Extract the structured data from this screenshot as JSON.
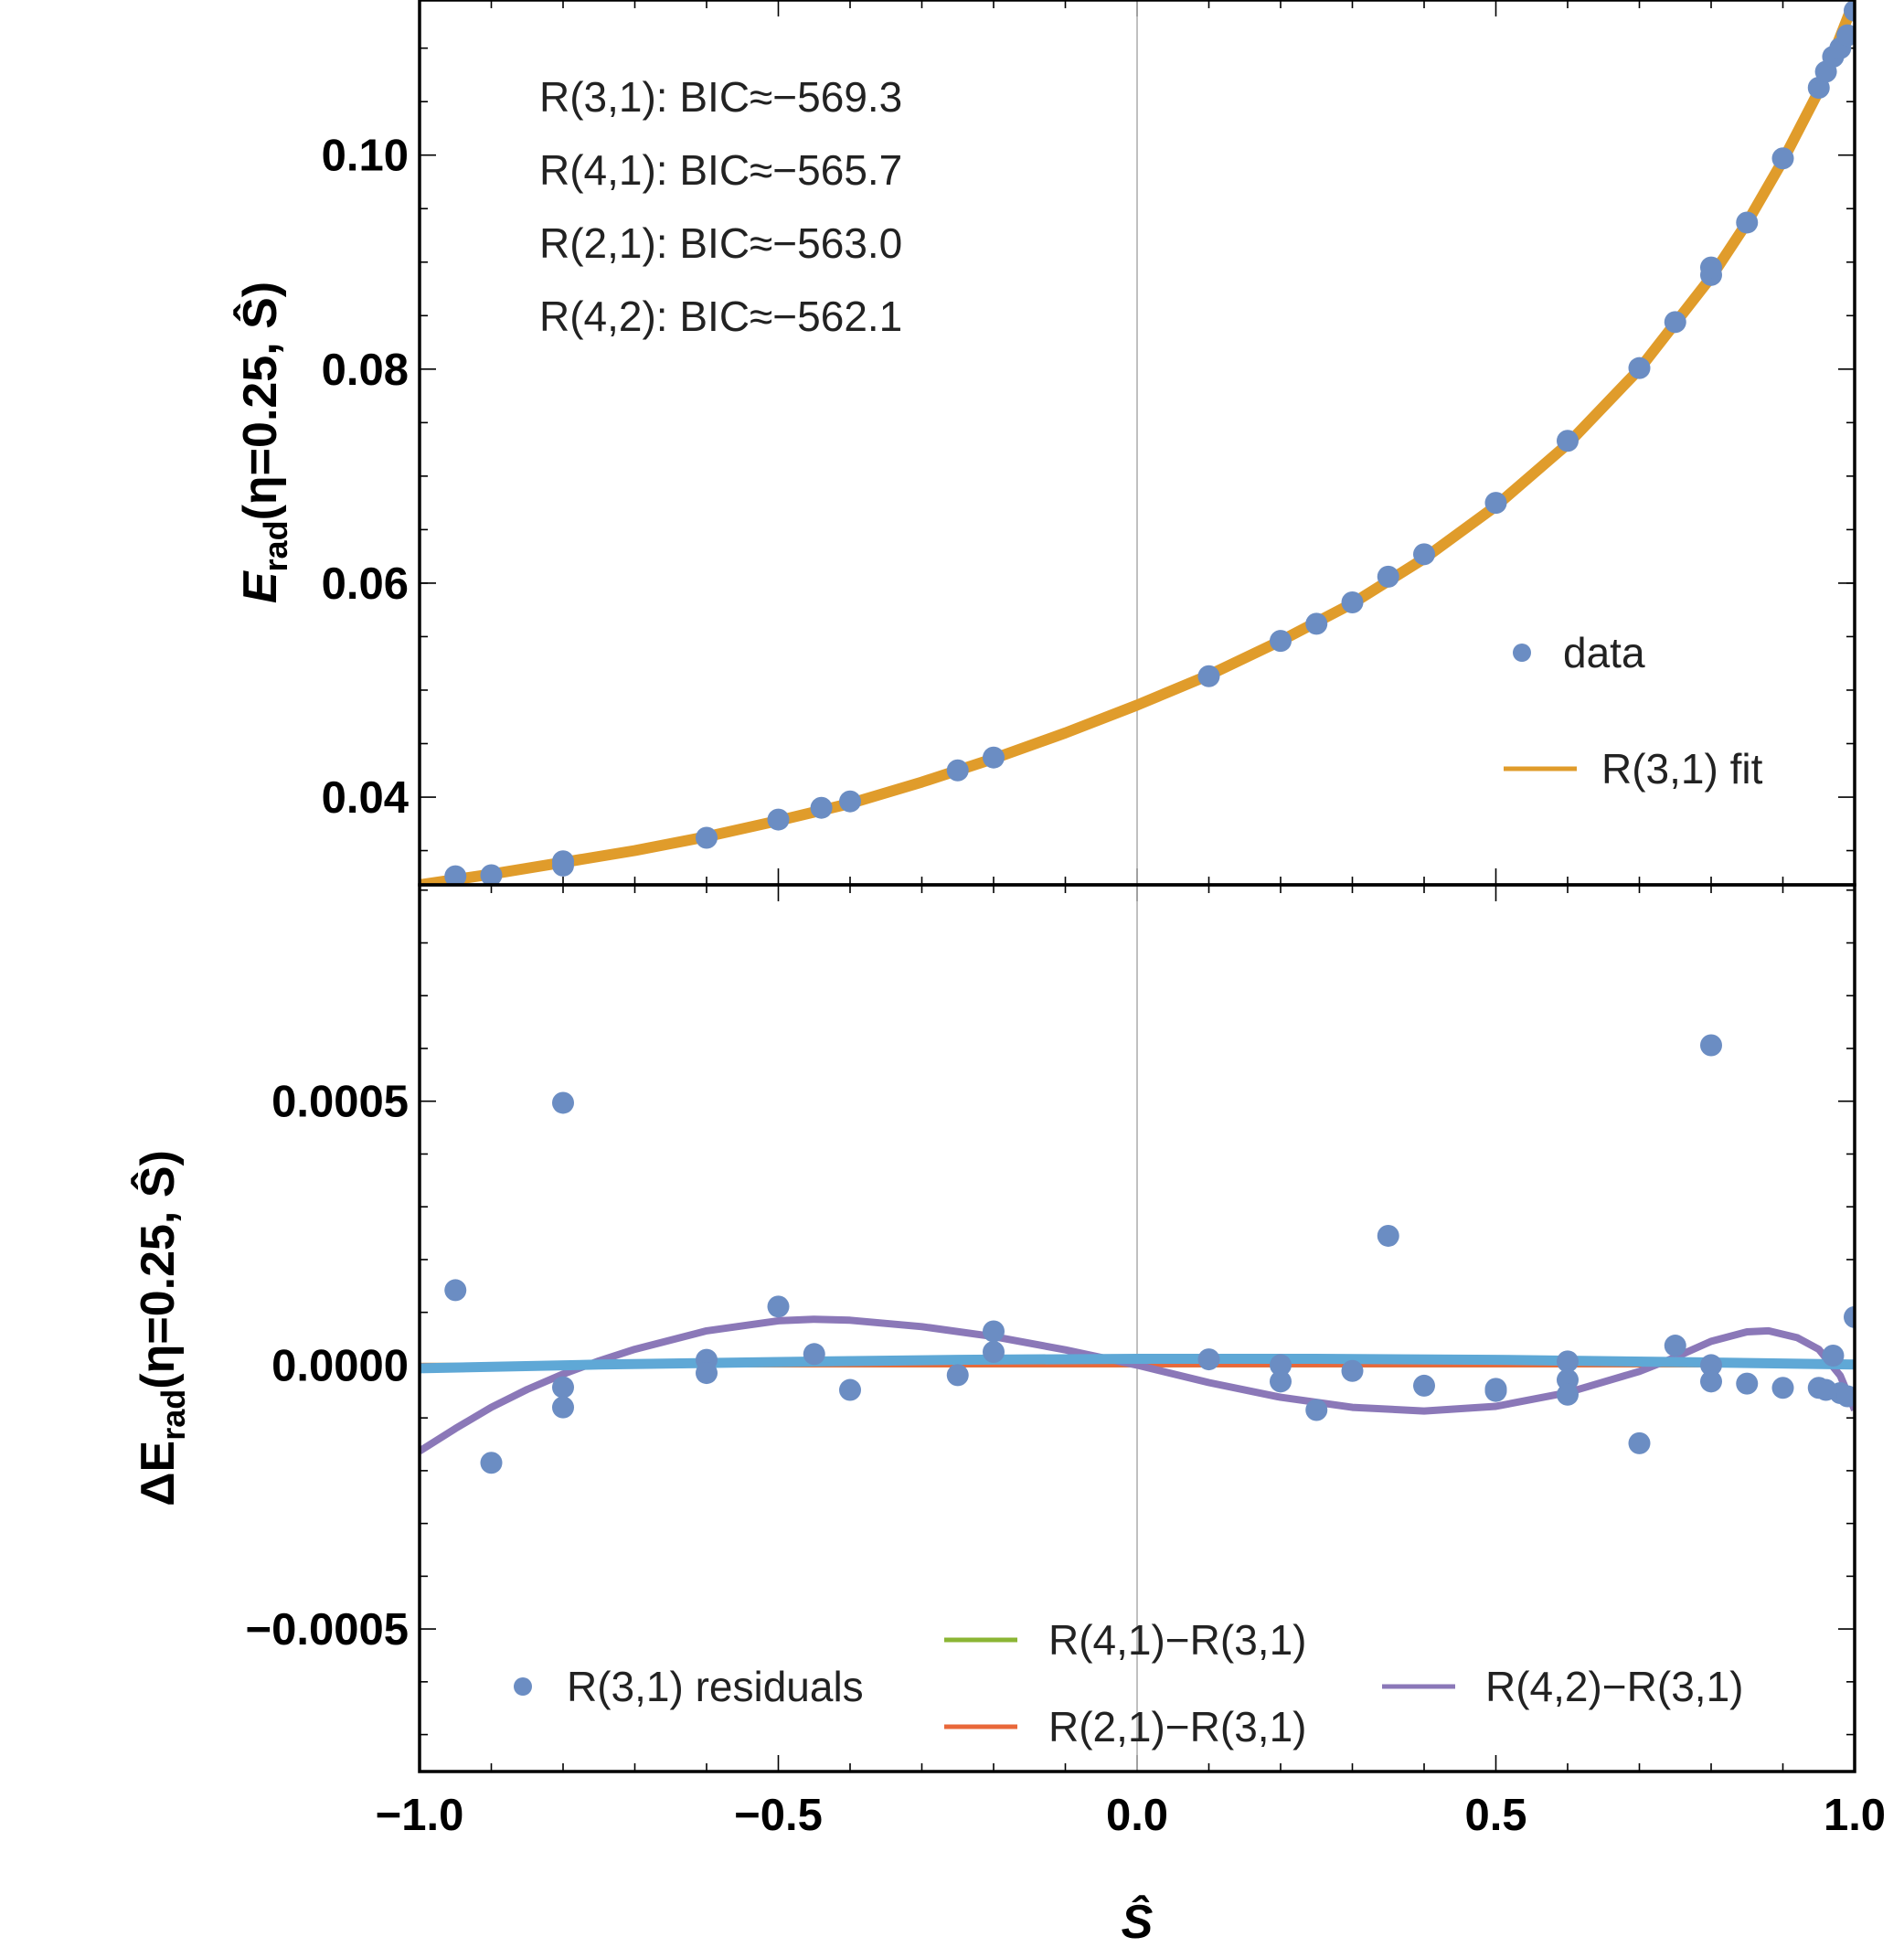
{
  "chart_data": [
    {
      "type": "scatter",
      "panel": "top",
      "xlim": [
        -1.0,
        1.0
      ],
      "ylim": [
        0.0318,
        0.1145
      ],
      "ylabel": {
        "main": "E",
        "sub": "rad",
        "rest": "(η=0.25, Ŝ)"
      },
      "yticks": [
        0.04,
        0.06,
        0.08,
        0.1
      ],
      "ytick_labels": [
        "0.04",
        "0.06",
        "0.08",
        "0.10"
      ],
      "annotations": [
        "R(3,1): BIC≈−569.3",
        "R(4,1): BIC≈−565.7",
        "R(2,1): BIC≈−563.0",
        "R(4,2): BIC≈−562.1"
      ],
      "legend_position": "bottom-right",
      "series": [
        {
          "name": "data",
          "kind": "points",
          "color": "#6b8dc3",
          "x": [
            -0.95,
            -0.9,
            -0.8,
            -0.8,
            -0.6,
            -0.5,
            -0.44,
            -0.4,
            -0.25,
            -0.2,
            0.1,
            0.2,
            0.25,
            0.3,
            0.35,
            0.4,
            0.5,
            0.6,
            0.7,
            0.75,
            0.8,
            0.8,
            0.85,
            0.9,
            0.95,
            0.96,
            0.97,
            0.98,
            0.99,
            1.0
          ],
          "y": [
            0.0326,
            0.0327,
            0.0336,
            0.034,
            0.0362,
            0.0379,
            0.039,
            0.0396,
            0.0425,
            0.0437,
            0.0513,
            0.0546,
            0.0562,
            0.0582,
            0.0606,
            0.0627,
            0.0675,
            0.0733,
            0.0801,
            0.0844,
            0.0888,
            0.0895,
            0.0937,
            0.0997,
            0.1063,
            0.1078,
            0.1092,
            0.11,
            0.1112,
            0.1135
          ]
        },
        {
          "name": "R(3,1) fit",
          "kind": "line",
          "color": "#e09c2b",
          "x": [
            -1.0,
            -0.9,
            -0.8,
            -0.7,
            -0.6,
            -0.5,
            -0.4,
            -0.3,
            -0.2,
            -0.1,
            0.0,
            0.1,
            0.2,
            0.3,
            0.4,
            0.5,
            0.6,
            0.7,
            0.8,
            0.85,
            0.9,
            0.95,
            1.0
          ],
          "y": [
            0.0318,
            0.0328,
            0.0339,
            0.035,
            0.0363,
            0.0378,
            0.0394,
            0.0414,
            0.0436,
            0.046,
            0.0486,
            0.0514,
            0.0546,
            0.0581,
            0.0623,
            0.0672,
            0.073,
            0.08,
            0.0886,
            0.0937,
            0.0995,
            0.106,
            0.1145
          ]
        }
      ]
    },
    {
      "type": "scatter",
      "panel": "bottom",
      "xlim": [
        -1.0,
        1.0
      ],
      "ylim": [
        -0.00077,
        0.00091
      ],
      "xlabel": "Ŝ",
      "ylabel": {
        "main": "ΔE",
        "sub": "rad",
        "rest": "(η=0.25, Ŝ)"
      },
      "xticks": [
        -1.0,
        -0.5,
        0.0,
        0.5,
        1.0
      ],
      "xtick_labels": [
        "−1.0",
        "−0.5",
        "0.0",
        "0.5",
        "1.0"
      ],
      "yticks": [
        -0.0005,
        0.0,
        0.0005
      ],
      "ytick_labels": [
        "−0.0005",
        "0.0000",
        "0.0005"
      ],
      "legend_position": "bottom",
      "series": [
        {
          "name": "R(3,1) residuals",
          "kind": "points",
          "color": "#6b8dc3",
          "x": [
            -0.95,
            -0.9,
            -0.8,
            -0.8,
            -0.8,
            -0.6,
            -0.6,
            -0.5,
            -0.45,
            -0.4,
            -0.25,
            -0.2,
            -0.2,
            0.1,
            0.2,
            0.2,
            0.25,
            0.3,
            0.35,
            0.4,
            0.5,
            0.5,
            0.6,
            0.6,
            0.6,
            0.7,
            0.75,
            0.8,
            0.8,
            0.8,
            0.85,
            0.9,
            0.95,
            0.96,
            0.97,
            0.98,
            0.99,
            1.0
          ],
          "y": [
            0.000142,
            -0.000185,
            0.000497,
            -4.2e-05,
            -8e-05,
            1e-05,
            -1.5e-05,
            0.000111,
            2.1e-05,
            -4.7e-05,
            -1.9e-05,
            6.4e-05,
            2.5e-05,
            1.1e-05,
            0.0,
            -3.1e-05,
            -8.5e-05,
            -1.1e-05,
            0.000245,
            -3.9e-05,
            -4.5e-05,
            -4.9e-05,
            7e-06,
            -2.8e-05,
            -5.6e-05,
            -0.000148,
            3.7e-05,
            0.0,
            -3.1e-05,
            0.000606,
            -3.5e-05,
            -4.3e-05,
            -4.3e-05,
            -4.7e-05,
            1.8e-05,
            -5.3e-05,
            -5.9e-05,
            9.1e-05
          ]
        },
        {
          "name": "R(4,1)−R(3,1)",
          "kind": "line",
          "color": "#8bb534",
          "x": [
            -1.0,
            -0.75,
            -0.5,
            -0.25,
            0.0,
            0.25,
            0.5,
            0.75,
            1.0
          ],
          "y": [
            0.0,
            0.0,
            0.0,
            0.0,
            0.0,
            0.0,
            0.0,
            0.0,
            0.0
          ]
        },
        {
          "name": "R(2,1)−R(3,1)",
          "kind": "line",
          "color": "#e9683a",
          "x": [
            -1.0,
            -0.75,
            -0.5,
            -0.25,
            0.0,
            0.25,
            0.5,
            0.75,
            1.0
          ],
          "y": [
            0.0,
            0.0,
            0.0,
            0.0,
            0.0,
            0.0,
            0.0,
            0.0,
            0.0
          ]
        },
        {
          "name": "R(4,2)−R(3,1)",
          "kind": "line",
          "color": "#8b78b8",
          "x": [
            -1.0,
            -0.95,
            -0.9,
            -0.85,
            -0.8,
            -0.75,
            -0.7,
            -0.6,
            -0.5,
            -0.45,
            -0.4,
            -0.3,
            -0.2,
            -0.1,
            0.0,
            0.1,
            0.2,
            0.3,
            0.4,
            0.5,
            0.6,
            0.7,
            0.75,
            0.8,
            0.85,
            0.88,
            0.92,
            0.95,
            0.98,
            1.0
          ],
          "y": [
            -0.000163,
            -0.00012,
            -8e-05,
            -4.6e-05,
            -1.7e-05,
            8e-06,
            3e-05,
            6.5e-05,
            8.4e-05,
            8.7e-05,
            8.5e-05,
            7.3e-05,
            5.4e-05,
            2.9e-05,
            0.0,
            -3.3e-05,
            -6.1e-05,
            -8e-05,
            -8.7e-05,
            -7.8e-05,
            -5.2e-05,
            -1.2e-05,
            1.5e-05,
            4.5e-05,
            6.3e-05,
            6.5e-05,
            5.2e-05,
            3e-05,
            -2e-05,
            -8.5e-05
          ]
        },
        {
          "name": "",
          "kind": "line",
          "color": "#5fa8d6",
          "x": [
            -1.0,
            -0.75,
            -0.5,
            -0.25,
            0.0,
            0.25,
            0.5,
            0.75,
            1.0
          ],
          "y": [
            -6e-06,
            1e-06,
            6e-06,
            1e-05,
            1.2e-05,
            1.2e-05,
            1e-05,
            6e-06,
            1e-06
          ]
        }
      ]
    }
  ]
}
